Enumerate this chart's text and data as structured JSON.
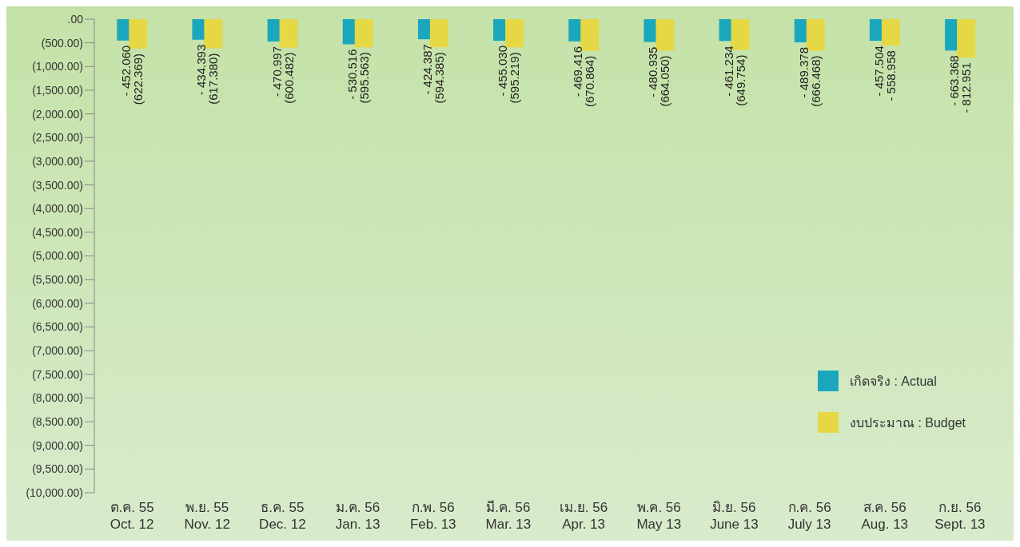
{
  "chart_data": {
    "type": "bar",
    "categories": [
      "ต.ค. 55\nOct. 12",
      "พ.ย. 55\nNov. 12",
      "ธ.ค. 55\nDec. 12",
      "ม.ค. 56\nJan. 13",
      "ก.พ. 56\nFeb. 13",
      "มี.ค. 56\nMar. 13",
      "เม.ย. 56\nApr. 13",
      "พ.ค. 56\nMay 13",
      "มิ.ย. 56\nJune 13",
      "ก.ค. 56\nJuly 13",
      "ส.ค. 56\nAug. 13",
      "ก.ย. 56\nSept. 13"
    ],
    "series": [
      {
        "name": "เกิดจริง : Actual",
        "color": "#1aa7be",
        "values": [
          -452.06,
          -434.393,
          -470.997,
          -530.516,
          -424.387,
          -455.03,
          -469.416,
          -480.935,
          -461.234,
          -489.378,
          -457.504,
          -663.368
        ],
        "value_labels": [
          "- 452.060",
          "- 434.393",
          "- 470.997",
          "- 530.516",
          "- 424.387",
          "- 455.030",
          "- 469.416",
          "- 480.935",
          "- 461.234",
          "- 489.378",
          "- 457.504",
          "- 663.368"
        ]
      },
      {
        "name": "งบประมาณ : Budget",
        "color": "#e6d844",
        "values": [
          -622.369,
          -617.38,
          -600.482,
          -595.563,
          -594.385,
          -595.219,
          -670.864,
          -664.05,
          -649.754,
          -666.468,
          -558.958,
          -812.951
        ],
        "value_labels": [
          "(622.369)",
          "(617.380)",
          "(600.482)",
          "(595.563)",
          "(594.385)",
          "(595.219)",
          "(670.864)",
          "(664.050)",
          "(649.754)",
          "(666.468)",
          "- 558.958",
          "- 812.951"
        ]
      }
    ],
    "ylim": [
      -10000,
      0
    ],
    "yticks": [
      {
        "value": 0,
        "label": ".00"
      },
      {
        "value": -500,
        "label": "(500.00)"
      },
      {
        "value": -1000,
        "label": "(1,000.00)"
      },
      {
        "value": -1500,
        "label": "(1,500.00)"
      },
      {
        "value": -2000,
        "label": "(2,000.00)"
      },
      {
        "value": -2500,
        "label": "(2,500.00)"
      },
      {
        "value": -3000,
        "label": "(3,000.00)"
      },
      {
        "value": -3500,
        "label": "(3,500.00)"
      },
      {
        "value": -4000,
        "label": "(4,000.00)"
      },
      {
        "value": -4500,
        "label": "(4,500.00)"
      },
      {
        "value": -5000,
        "label": "(5,000.00)"
      },
      {
        "value": -5500,
        "label": "(5,500.00)"
      },
      {
        "value": -6000,
        "label": "(6,000.00)"
      },
      {
        "value": -6500,
        "label": "(6,500.00)"
      },
      {
        "value": -7000,
        "label": "(7,000.00)"
      },
      {
        "value": -7500,
        "label": "(7,500.00)"
      },
      {
        "value": -8000,
        "label": "(8,000.00)"
      },
      {
        "value": -8500,
        "label": "(8,500.00)"
      },
      {
        "value": -9000,
        "label": "(9,000.00)"
      },
      {
        "value": -9500,
        "label": "(9,500.00)"
      },
      {
        "value": -10000,
        "label": "(10,000.00)"
      }
    ],
    "grid": false,
    "legend": "bottom right"
  }
}
